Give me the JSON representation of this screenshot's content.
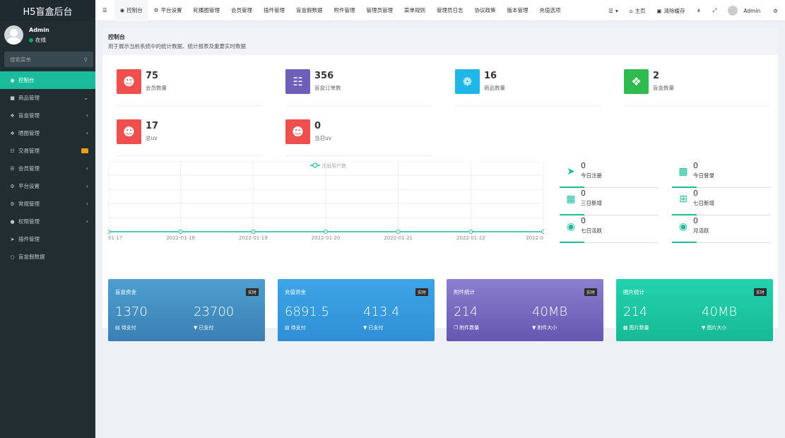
{
  "app": {
    "title": "H5盲盒后台"
  },
  "user": {
    "name": "Admin",
    "status": "在线"
  },
  "sidebar": {
    "search_placeholder": "搜索菜单",
    "items": [
      {
        "label": "控制台",
        "icon": "dashboard-icon"
      },
      {
        "label": "商品管理",
        "icon": "box-icon"
      },
      {
        "label": "盲盒管理",
        "icon": "gift-icon"
      },
      {
        "label": "晒图管理",
        "icon": "gift-icon"
      },
      {
        "label": "交易管理",
        "icon": "cart-icon"
      },
      {
        "label": "会员管理",
        "icon": "list-icon"
      },
      {
        "label": "平台设置",
        "icon": "gears-icon"
      },
      {
        "label": "常规管理",
        "icon": "gears-icon"
      },
      {
        "label": "权限管理",
        "icon": "group-icon"
      },
      {
        "label": "插件管理",
        "icon": "rocket-icon"
      },
      {
        "label": "盲盒假数据",
        "icon": "circle-icon"
      }
    ]
  },
  "topbar": {
    "tabs": [
      "控制台",
      "平台设置",
      "轮播图管理",
      "会员管理",
      "插件管理",
      "盲盒假数据",
      "附件管理",
      "管理员管理",
      "菜单规则",
      "管理员日志",
      "协议政策",
      "版本管理",
      "充值选项"
    ],
    "home": "主页",
    "clear_cache": "清除缓存",
    "user": "Admin"
  },
  "header": {
    "title": "控制台",
    "subtitle": "用于展示当前系统中的统计数据、统计报表及重要实时数据"
  },
  "stats": [
    {
      "value": "75",
      "label": "会员数量",
      "color": "#dd4b39",
      "icon": "users-icon"
    },
    {
      "value": "356",
      "label": "盲盒订单数",
      "color": "#605ca8",
      "icon": "cart-icon"
    },
    {
      "value": "16",
      "label": "商品数量",
      "color": "#00c0ef",
      "icon": "leaf-icon"
    },
    {
      "value": "2",
      "label": "盲盒数量",
      "color": "#00a65a",
      "icon": "dropbox-icon"
    },
    {
      "value": "17",
      "label": "总uv",
      "color": "#dd4b39",
      "icon": "users-icon"
    },
    {
      "value": "0",
      "label": "当日uv",
      "color": "#dd4b39",
      "icon": "users-icon"
    }
  ],
  "chart_data": {
    "type": "line",
    "title": "",
    "series": [
      {
        "name": "注册用户数",
        "values": [
          0,
          0,
          0,
          0,
          0,
          0,
          0
        ]
      }
    ],
    "x": [
      "01-17",
      "2022-01-18",
      "2022-01-19",
      "2022-01-20",
      "2022-01-21",
      "2022-01-22",
      "2022-0"
    ],
    "ylim": [
      0,
      1
    ],
    "grid": true,
    "legend": "top-center",
    "color": "#1abc9c"
  },
  "mini_stats": [
    {
      "value": "0",
      "label": "今日注册",
      "icon": "rocket-icon"
    },
    {
      "value": "0",
      "label": "今日登录",
      "icon": "vcard-icon"
    },
    {
      "value": "0",
      "label": "三日新增",
      "icon": "calendar-icon"
    },
    {
      "value": "0",
      "label": "七日新增",
      "icon": "calendar-plus-icon"
    },
    {
      "value": "0",
      "label": "七日活跃",
      "icon": "user-circle-icon"
    },
    {
      "value": "0",
      "label": "月活跃",
      "icon": "user-circle-icon"
    }
  ],
  "cards": [
    {
      "title": "盲盒资金",
      "tag": "实时",
      "v1": "1370",
      "l1": "待支付",
      "v2": "23700",
      "l2": "已支付",
      "color": "#4a97c7"
    },
    {
      "title": "充值资金",
      "tag": "实时",
      "v1": "6891.5",
      "l1": "待支付",
      "v2": "413.4",
      "l2": "已支付",
      "color": "#3a9bdd"
    },
    {
      "title": "附件统计",
      "tag": "实时",
      "v1": "214",
      "l1": "附件数量",
      "v2": "40MB",
      "l2": "附件大小",
      "color": "#7a6fc0"
    },
    {
      "title": "图片统计",
      "tag": "实时",
      "v1": "214",
      "l1": "图片数量",
      "v2": "40MB",
      "l2": "图片大小",
      "color": "#1dc7a0"
    }
  ]
}
